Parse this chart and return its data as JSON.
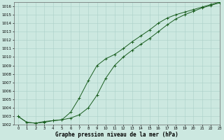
{
  "xlabel": "Graphe pression niveau de la mer (hPa)",
  "ylim": [
    1002,
    1016.5
  ],
  "xlim": [
    -0.5,
    23
  ],
  "yticks": [
    1002,
    1003,
    1004,
    1005,
    1006,
    1007,
    1008,
    1009,
    1010,
    1011,
    1012,
    1013,
    1014,
    1015,
    1016
  ],
  "xticks": [
    0,
    1,
    2,
    3,
    4,
    5,
    6,
    7,
    8,
    9,
    10,
    11,
    12,
    13,
    14,
    15,
    16,
    17,
    18,
    19,
    20,
    21,
    22,
    23
  ],
  "bg_color": "#cce8e0",
  "grid_color": "#aacfc8",
  "line_color": "#1a5e20",
  "line1_x": [
    0,
    1,
    2,
    3,
    4,
    5,
    6,
    7,
    8,
    9,
    10,
    11,
    12,
    13,
    14,
    15,
    16,
    17,
    18,
    19,
    20,
    21,
    22,
    23
  ],
  "line1_y": [
    1003.0,
    1002.3,
    1002.2,
    1002.3,
    1002.5,
    1002.6,
    1002.8,
    1003.2,
    1004.0,
    1005.5,
    1007.5,
    1009.0,
    1010.0,
    1010.8,
    1011.5,
    1012.2,
    1013.0,
    1013.8,
    1014.5,
    1015.0,
    1015.4,
    1015.8,
    1016.1,
    1016.4
  ],
  "line2_x": [
    0,
    1,
    2,
    3,
    4,
    5,
    6,
    7,
    8,
    9,
    10,
    11,
    12,
    13,
    14,
    15,
    16,
    17,
    18,
    19,
    20,
    21,
    22,
    23
  ],
  "line2_y": [
    1003.0,
    1002.3,
    1002.2,
    1002.4,
    1002.5,
    1002.6,
    1003.5,
    1005.2,
    1007.2,
    1009.0,
    1009.8,
    1010.3,
    1011.0,
    1011.8,
    1012.5,
    1013.2,
    1014.0,
    1014.6,
    1015.0,
    1015.3,
    1015.6,
    1015.9,
    1016.2,
    1016.5
  ]
}
